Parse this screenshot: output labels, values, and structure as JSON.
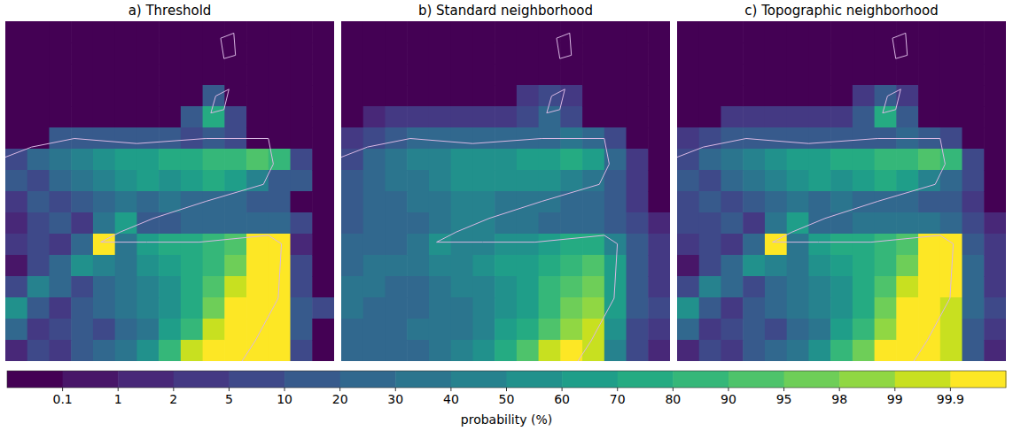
{
  "chart_data": [
    {
      "type": "heatmap",
      "title": "a) Threshold",
      "cells": [
        [
          0,
          0,
          0,
          0,
          0,
          0,
          0,
          0,
          0,
          0,
          0,
          0,
          0,
          0,
          0
        ],
        [
          0,
          0,
          0,
          0,
          0,
          0,
          0,
          0,
          0,
          0,
          0,
          0,
          0,
          0,
          0
        ],
        [
          0,
          0,
          0,
          0,
          0,
          0,
          0,
          0,
          0,
          0,
          0,
          0,
          0,
          0,
          0
        ],
        [
          0,
          0,
          0,
          0,
          0,
          0,
          0,
          0,
          0,
          10,
          0,
          0,
          0,
          0,
          0
        ],
        [
          0,
          0,
          0,
          0,
          0,
          0,
          0,
          0,
          10,
          70,
          5,
          0,
          0,
          0,
          0
        ],
        [
          0,
          0,
          10,
          10,
          10,
          10,
          10,
          10,
          5,
          10,
          5,
          0,
          0,
          0,
          0
        ],
        [
          5,
          20,
          30,
          40,
          50,
          60,
          60,
          70,
          70,
          80,
          80,
          90,
          80,
          5,
          0
        ],
        [
          10,
          5,
          20,
          30,
          40,
          50,
          60,
          50,
          60,
          70,
          60,
          40,
          10,
          10,
          0
        ],
        [
          2,
          10,
          5,
          10,
          20,
          30,
          20,
          30,
          20,
          20,
          20,
          10,
          10,
          0,
          0
        ],
        [
          1,
          5,
          10,
          2,
          30,
          60,
          10,
          10,
          20,
          20,
          20,
          20,
          20,
          5,
          0
        ],
        [
          2,
          5,
          2,
          20,
          99.9,
          30,
          60,
          70,
          70,
          80,
          90,
          99.9,
          99.9,
          1,
          0
        ],
        [
          0.1,
          5,
          20,
          50,
          40,
          30,
          50,
          60,
          70,
          80,
          95,
          99.9,
          99.9,
          5,
          0
        ],
        [
          5,
          40,
          20,
          5,
          20,
          30,
          40,
          50,
          70,
          90,
          99,
          99.9,
          99.9,
          5,
          0
        ],
        [
          50,
          10,
          2,
          10,
          20,
          30,
          40,
          50,
          70,
          95,
          99.9,
          99.9,
          99.9,
          10,
          5
        ],
        [
          20,
          2,
          5,
          10,
          5,
          20,
          30,
          60,
          80,
          99,
          99.9,
          99.9,
          99.9,
          10,
          0
        ],
        [
          1,
          5,
          2,
          10,
          20,
          30,
          50,
          80,
          99,
          99.9,
          99.9,
          99.9,
          99.9,
          5,
          0
        ]
      ]
    },
    {
      "type": "heatmap",
      "title": "b) Standard neighborhood",
      "cells": [
        [
          0,
          0,
          0,
          0,
          0,
          0,
          0,
          0,
          0,
          0,
          0,
          0,
          0,
          0,
          0
        ],
        [
          0,
          0,
          0,
          0,
          0,
          0,
          0,
          0,
          0,
          0,
          0,
          0,
          0,
          0,
          0
        ],
        [
          0,
          0,
          0,
          0,
          0,
          0,
          0,
          0,
          0,
          0,
          0,
          0,
          0,
          0,
          0
        ],
        [
          0,
          0,
          0,
          0,
          0,
          0,
          0,
          0,
          2,
          5,
          2,
          0,
          0,
          0,
          0
        ],
        [
          0,
          1,
          2,
          2,
          2,
          2,
          2,
          2,
          5,
          20,
          5,
          0,
          0,
          0,
          0
        ],
        [
          2,
          5,
          10,
          20,
          20,
          20,
          20,
          20,
          20,
          20,
          30,
          20,
          5,
          0,
          0
        ],
        [
          5,
          20,
          30,
          40,
          40,
          50,
          50,
          50,
          60,
          60,
          70,
          60,
          20,
          2,
          0
        ],
        [
          10,
          20,
          30,
          30,
          40,
          50,
          50,
          50,
          50,
          50,
          40,
          30,
          10,
          2,
          0
        ],
        [
          10,
          20,
          20,
          30,
          30,
          40,
          40,
          30,
          30,
          30,
          20,
          20,
          10,
          2,
          0
        ],
        [
          10,
          20,
          20,
          20,
          30,
          40,
          40,
          30,
          30,
          20,
          20,
          20,
          10,
          5,
          1
        ],
        [
          20,
          20,
          20,
          30,
          50,
          40,
          40,
          50,
          50,
          60,
          70,
          70,
          40,
          10,
          2
        ],
        [
          20,
          30,
          30,
          30,
          40,
          40,
          50,
          60,
          60,
          70,
          80,
          90,
          60,
          10,
          2
        ],
        [
          30,
          30,
          20,
          20,
          30,
          40,
          40,
          50,
          60,
          80,
          90,
          95,
          60,
          10,
          2
        ],
        [
          30,
          20,
          20,
          20,
          30,
          30,
          40,
          50,
          60,
          80,
          95,
          98,
          60,
          10,
          5
        ],
        [
          20,
          20,
          20,
          30,
          30,
          30,
          40,
          60,
          70,
          90,
          98,
          99,
          50,
          5,
          2
        ],
        [
          20,
          20,
          20,
          20,
          30,
          40,
          50,
          70,
          90,
          99,
          99.9,
          99,
          40,
          5,
          1
        ]
      ]
    },
    {
      "type": "heatmap",
      "title": "c) Topographic neighborhood",
      "cells": [
        [
          0,
          0,
          0,
          0,
          0,
          0,
          0,
          0,
          0,
          0,
          0,
          0,
          0,
          0,
          0
        ],
        [
          0,
          0,
          0,
          0,
          0,
          0,
          0,
          0,
          0,
          0,
          0,
          0,
          0,
          0,
          0
        ],
        [
          0,
          0,
          0,
          0,
          0,
          0,
          0,
          0,
          0,
          0,
          0,
          0,
          0,
          0,
          0
        ],
        [
          0,
          0,
          0,
          0,
          0,
          0,
          0,
          0,
          2,
          10,
          2,
          0,
          0,
          0,
          0
        ],
        [
          0,
          0,
          2,
          2,
          2,
          2,
          2,
          2,
          10,
          70,
          10,
          0,
          0,
          0,
          0
        ],
        [
          2,
          5,
          10,
          10,
          10,
          10,
          10,
          10,
          10,
          10,
          20,
          10,
          5,
          0,
          0
        ],
        [
          5,
          20,
          30,
          40,
          50,
          60,
          60,
          70,
          70,
          80,
          80,
          90,
          80,
          5,
          0
        ],
        [
          10,
          5,
          20,
          30,
          40,
          50,
          60,
          50,
          60,
          70,
          60,
          40,
          20,
          5,
          0
        ],
        [
          5,
          10,
          5,
          10,
          20,
          30,
          20,
          30,
          20,
          20,
          20,
          10,
          10,
          2,
          0
        ],
        [
          5,
          5,
          10,
          2,
          30,
          60,
          20,
          20,
          30,
          30,
          30,
          30,
          20,
          5,
          1
        ],
        [
          2,
          5,
          2,
          20,
          99.9,
          30,
          60,
          70,
          70,
          80,
          90,
          99.9,
          99.9,
          10,
          2
        ],
        [
          0.1,
          5,
          20,
          50,
          40,
          30,
          50,
          60,
          70,
          80,
          95,
          99.9,
          99.9,
          20,
          2
        ],
        [
          5,
          40,
          20,
          5,
          20,
          30,
          40,
          50,
          70,
          90,
          99,
          99.9,
          99.9,
          20,
          2
        ],
        [
          50,
          10,
          2,
          10,
          20,
          30,
          40,
          50,
          70,
          95,
          99.9,
          99.9,
          99,
          20,
          5
        ],
        [
          20,
          2,
          5,
          10,
          5,
          20,
          30,
          60,
          80,
          98,
          99.9,
          99.9,
          99,
          10,
          2
        ],
        [
          1,
          5,
          2,
          10,
          20,
          30,
          50,
          80,
          95,
          99.9,
          99.9,
          99.9,
          99,
          10,
          1
        ]
      ]
    }
  ],
  "colorbar": {
    "label": "probability (%)",
    "bounds": [
      0,
      0.1,
      1,
      2,
      5,
      10,
      20,
      30,
      40,
      50,
      60,
      70,
      80,
      90,
      95,
      98,
      99,
      99.9,
      100
    ],
    "ticks": [
      0.1,
      1,
      2,
      5,
      10,
      20,
      30,
      40,
      50,
      60,
      70,
      80,
      90,
      95,
      98,
      99,
      99.9
    ],
    "colors": [
      "#440154",
      "#481668",
      "#482878",
      "#443983",
      "#3e4989",
      "#375a8c",
      "#31688e",
      "#2b758e",
      "#26828e",
      "#21918c",
      "#1f9e89",
      "#25ab82",
      "#35b779",
      "#4ec36b",
      "#6ece58",
      "#90d743",
      "#c8e020",
      "#fde725"
    ]
  }
}
